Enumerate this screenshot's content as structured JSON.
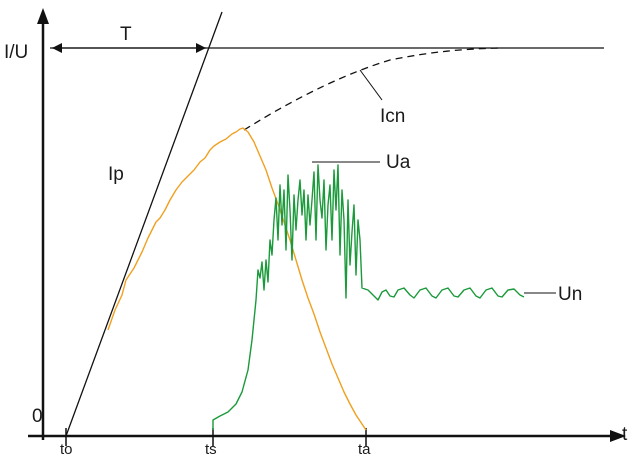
{
  "labels": {
    "y_axis": "I/U",
    "x_axis": "t",
    "origin": "0",
    "period": "T",
    "t_o": "to",
    "t_s": "ts",
    "t_a": "ta"
  },
  "curves": {
    "ip": {
      "label": "Ip",
      "color": "#111111"
    },
    "icn": {
      "label": "Icn",
      "color": "#111111"
    },
    "current": {
      "color": "#f0a020"
    },
    "ua": {
      "label": "Ua",
      "color": "#1a9a3a"
    },
    "un": {
      "label": "Un",
      "color": "#1a9a3a"
    }
  }
}
